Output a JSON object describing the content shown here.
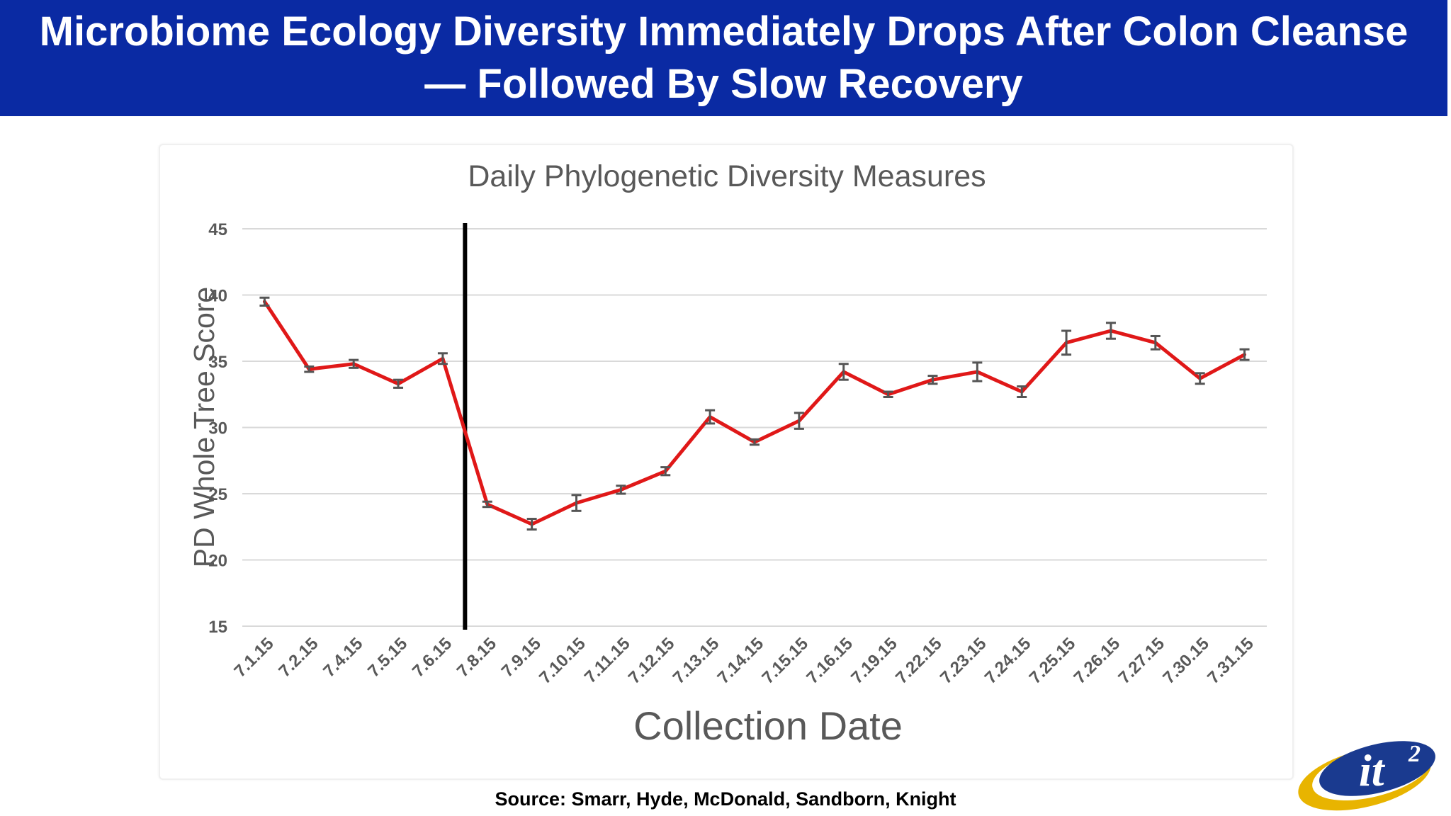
{
  "header": {
    "title": "Microbiome Ecology Diversity Immediately Drops After Colon Cleanse — Followed By Slow Recovery"
  },
  "source": "Source: Smarr, Hyde, McDonald, Sandborn, Knight",
  "logo": {
    "text": "it",
    "superscript": "2"
  },
  "colors": {
    "header_bg": "#0a2aa3",
    "line": "#e01818",
    "error_bar": "#555555",
    "marker": "#000000",
    "grid": "#d9d9d9",
    "axis_text": "#595959"
  },
  "chart_data": {
    "type": "line",
    "title": "Daily Phylogenetic Diversity Measures",
    "xlabel": "Collection Date",
    "ylabel": "PD Whole Tree Score",
    "ylim": [
      15,
      45
    ],
    "yticks": [
      15,
      20,
      25,
      30,
      35,
      40,
      45
    ],
    "grid": true,
    "categories": [
      "7.1.15",
      "7.2.15",
      "7.4.15",
      "7.5.15",
      "7.6.15",
      "7.8.15",
      "7.9.15",
      "7.10.15",
      "7.11.15",
      "7.12.15",
      "7.13.15",
      "7.14.15",
      "7.15.15",
      "7.16.15",
      "7.19.15",
      "7.22.15",
      "7.23.15",
      "7.24.15",
      "7.25.15",
      "7.26.15",
      "7.27.15",
      "7.30.15",
      "7.31.15"
    ],
    "series": [
      {
        "values": [
          39.5,
          34.4,
          34.8,
          33.3,
          35.2,
          24.2,
          22.7,
          24.3,
          25.3,
          26.7,
          30.8,
          28.9,
          30.5,
          34.2,
          32.5,
          33.6,
          34.2,
          32.7,
          36.4,
          37.3,
          36.4,
          33.7,
          35.5
        ],
        "error": [
          0.3,
          0.2,
          0.3,
          0.3,
          0.4,
          0.2,
          0.4,
          0.6,
          0.3,
          0.3,
          0.5,
          0.2,
          0.6,
          0.6,
          0.2,
          0.3,
          0.7,
          0.4,
          0.9,
          0.6,
          0.5,
          0.4,
          0.4
        ]
      }
    ],
    "annotations": [
      {
        "type": "vertical-line",
        "between_categories": [
          "7.6.15",
          "7.8.15"
        ]
      }
    ]
  }
}
